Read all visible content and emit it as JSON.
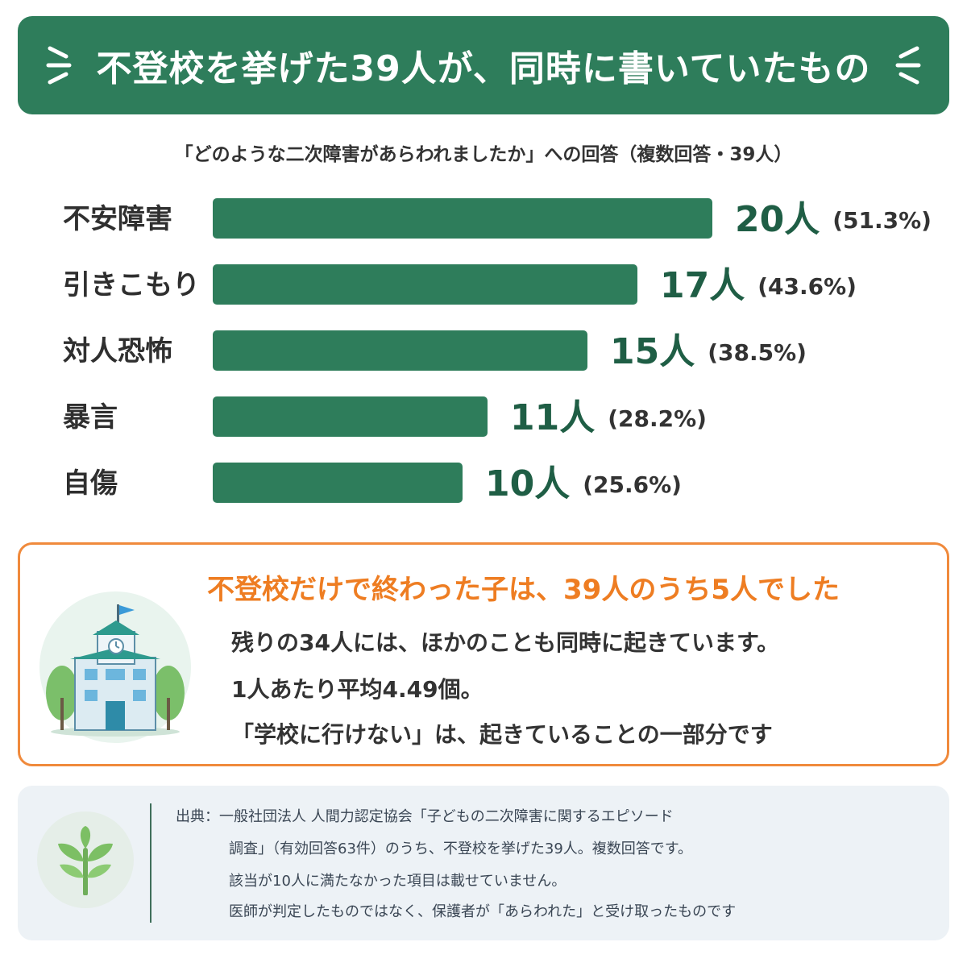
{
  "header": {
    "title": "不登校を挙げた39人が、同時に書いていたもの"
  },
  "subtitle": "「どのような二次障害があらわれましたか」への回答（複数回答・39人）",
  "colors": {
    "header_bg": "#2e7d5b",
    "bar": "#2e7d5b",
    "value_text": "#1f5e45",
    "accent_orange": "#ee7d22",
    "callout_border": "#f08a3c",
    "source_bg": "#edf2f6"
  },
  "chart_data": {
    "type": "bar",
    "orientation": "horizontal",
    "categories": [
      "不安障害",
      "引きこもり",
      "対人恐怖",
      "暴言",
      "自傷"
    ],
    "values": [
      20,
      17,
      15,
      11,
      10
    ],
    "unit": "人",
    "data_labels": [
      "20人",
      "17人",
      "15人",
      "11人",
      "10人"
    ],
    "percent_labels": [
      "(51.3%)",
      "(43.6%)",
      "(38.5%)",
      "(28.2%)",
      "(25.6%)"
    ],
    "xlim": [
      0,
      20
    ],
    "grid": false,
    "legend": "none"
  },
  "callout": {
    "headline": "不登校だけで終わった子は、39人のうち5人でした",
    "line1": "残りの34人には、ほかのことも同時に起きています。",
    "line2": "1人あたり平均4.49個。",
    "line3": "「学校に行けない」は、起きていることの一部分です",
    "icon": "school-icon"
  },
  "source": {
    "icon": "sprout-icon",
    "line1": "出典：一般社団法人 人間力認定協会「子どもの二次障害に関するエピソード",
    "line2": "調査」（有効回答63件）のうち、不登校を挙げた39人。複数回答です。",
    "line3": "該当が10人に満たなかった項目は載せていません。",
    "line4": "医師が判定したものではなく、保護者が「あらわれた」と受け取ったものです"
  }
}
